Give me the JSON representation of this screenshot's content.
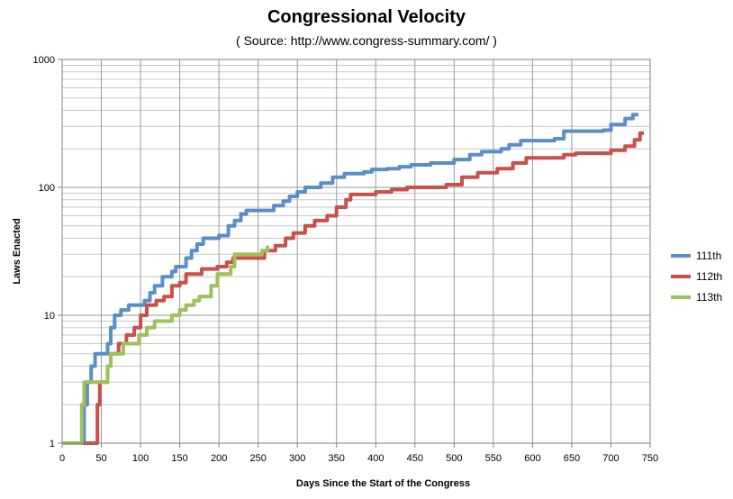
{
  "chart_data": {
    "type": "line",
    "title": "Congressional Velocity",
    "subtitle": "( Source: http://www.congress-summary.com/ )",
    "xlabel": "Days Since the Start of the Congress",
    "ylabel": "Laws Enacted",
    "xlim": [
      0,
      750
    ],
    "ylim": [
      1,
      1000
    ],
    "yscale": "log",
    "xticks": [
      0,
      50,
      100,
      150,
      200,
      250,
      300,
      350,
      400,
      450,
      500,
      550,
      600,
      650,
      700,
      750
    ],
    "yticks": [
      1,
      10,
      100,
      1000
    ],
    "grid": true,
    "legend_position": "right",
    "series": [
      {
        "name": "111th",
        "color": "#5b8ec7",
        "points": [
          [
            0,
            1
          ],
          [
            28,
            1
          ],
          [
            28,
            2
          ],
          [
            32,
            2
          ],
          [
            32,
            3
          ],
          [
            37,
            3
          ],
          [
            37,
            4
          ],
          [
            42,
            4
          ],
          [
            42,
            5
          ],
          [
            58,
            5
          ],
          [
            58,
            6
          ],
          [
            62,
            6
          ],
          [
            62,
            8
          ],
          [
            67,
            8
          ],
          [
            67,
            10
          ],
          [
            75,
            10
          ],
          [
            75,
            11
          ],
          [
            85,
            11
          ],
          [
            85,
            12
          ],
          [
            105,
            12
          ],
          [
            105,
            13
          ],
          [
            112,
            13
          ],
          [
            112,
            15
          ],
          [
            118,
            15
          ],
          [
            118,
            17
          ],
          [
            128,
            17
          ],
          [
            128,
            20
          ],
          [
            140,
            20
          ],
          [
            140,
            22
          ],
          [
            145,
            22
          ],
          [
            145,
            24
          ],
          [
            158,
            24
          ],
          [
            158,
            28
          ],
          [
            165,
            28
          ],
          [
            165,
            32
          ],
          [
            172,
            32
          ],
          [
            172,
            36
          ],
          [
            180,
            36
          ],
          [
            180,
            40
          ],
          [
            200,
            40
          ],
          [
            200,
            42
          ],
          [
            212,
            42
          ],
          [
            212,
            50
          ],
          [
            220,
            50
          ],
          [
            220,
            55
          ],
          [
            228,
            55
          ],
          [
            228,
            62
          ],
          [
            235,
            62
          ],
          [
            235,
            66
          ],
          [
            270,
            66
          ],
          [
            270,
            72
          ],
          [
            282,
            72
          ],
          [
            282,
            78
          ],
          [
            290,
            78
          ],
          [
            290,
            85
          ],
          [
            300,
            85
          ],
          [
            300,
            92
          ],
          [
            310,
            92
          ],
          [
            310,
            100
          ],
          [
            330,
            100
          ],
          [
            330,
            108
          ],
          [
            345,
            108
          ],
          [
            345,
            120
          ],
          [
            360,
            120
          ],
          [
            360,
            128
          ],
          [
            385,
            128
          ],
          [
            385,
            132
          ],
          [
            395,
            132
          ],
          [
            395,
            138
          ],
          [
            415,
            138
          ],
          [
            415,
            140
          ],
          [
            430,
            140
          ],
          [
            430,
            145
          ],
          [
            445,
            145
          ],
          [
            445,
            150
          ],
          [
            470,
            150
          ],
          [
            470,
            155
          ],
          [
            500,
            155
          ],
          [
            500,
            165
          ],
          [
            520,
            165
          ],
          [
            520,
            180
          ],
          [
            535,
            180
          ],
          [
            535,
            190
          ],
          [
            560,
            190
          ],
          [
            560,
            200
          ],
          [
            570,
            200
          ],
          [
            570,
            215
          ],
          [
            585,
            215
          ],
          [
            585,
            232
          ],
          [
            628,
            232
          ],
          [
            628,
            240
          ],
          [
            640,
            240
          ],
          [
            640,
            275
          ],
          [
            690,
            275
          ],
          [
            690,
            280
          ],
          [
            700,
            280
          ],
          [
            700,
            310
          ],
          [
            718,
            310
          ],
          [
            718,
            345
          ],
          [
            728,
            345
          ],
          [
            728,
            370
          ],
          [
            735,
            370
          ]
        ]
      },
      {
        "name": "112th",
        "color": "#c9504b",
        "points": [
          [
            0,
            1
          ],
          [
            45,
            1
          ],
          [
            45,
            2
          ],
          [
            48,
            2
          ],
          [
            48,
            3
          ],
          [
            58,
            3
          ],
          [
            58,
            4
          ],
          [
            62,
            4
          ],
          [
            62,
            5
          ],
          [
            72,
            5
          ],
          [
            72,
            6
          ],
          [
            82,
            6
          ],
          [
            82,
            7
          ],
          [
            92,
            7
          ],
          [
            92,
            8
          ],
          [
            100,
            8
          ],
          [
            100,
            10
          ],
          [
            108,
            10
          ],
          [
            108,
            12
          ],
          [
            120,
            12
          ],
          [
            120,
            13
          ],
          [
            130,
            13
          ],
          [
            130,
            14
          ],
          [
            140,
            14
          ],
          [
            140,
            17
          ],
          [
            150,
            17
          ],
          [
            150,
            18
          ],
          [
            158,
            18
          ],
          [
            158,
            21
          ],
          [
            178,
            21
          ],
          [
            178,
            23
          ],
          [
            198,
            23
          ],
          [
            198,
            24
          ],
          [
            210,
            24
          ],
          [
            210,
            26
          ],
          [
            218,
            26
          ],
          [
            218,
            28
          ],
          [
            258,
            28
          ],
          [
            258,
            32
          ],
          [
            272,
            32
          ],
          [
            272,
            35
          ],
          [
            285,
            35
          ],
          [
            285,
            40
          ],
          [
            295,
            40
          ],
          [
            295,
            44
          ],
          [
            310,
            44
          ],
          [
            310,
            50
          ],
          [
            322,
            50
          ],
          [
            322,
            55
          ],
          [
            338,
            55
          ],
          [
            338,
            60
          ],
          [
            350,
            60
          ],
          [
            350,
            70
          ],
          [
            362,
            70
          ],
          [
            362,
            80
          ],
          [
            368,
            80
          ],
          [
            368,
            88
          ],
          [
            400,
            88
          ],
          [
            400,
            92
          ],
          [
            420,
            92
          ],
          [
            420,
            96
          ],
          [
            440,
            96
          ],
          [
            440,
            100
          ],
          [
            490,
            100
          ],
          [
            490,
            105
          ],
          [
            510,
            105
          ],
          [
            510,
            120
          ],
          [
            530,
            120
          ],
          [
            530,
            130
          ],
          [
            555,
            130
          ],
          [
            555,
            140
          ],
          [
            575,
            140
          ],
          [
            575,
            155
          ],
          [
            592,
            155
          ],
          [
            592,
            170
          ],
          [
            640,
            170
          ],
          [
            640,
            180
          ],
          [
            655,
            180
          ],
          [
            655,
            185
          ],
          [
            700,
            185
          ],
          [
            700,
            195
          ],
          [
            718,
            195
          ],
          [
            718,
            210
          ],
          [
            730,
            210
          ],
          [
            730,
            235
          ],
          [
            737,
            235
          ],
          [
            737,
            265
          ],
          [
            742,
            265
          ]
        ]
      },
      {
        "name": "113th",
        "color": "#9ec15a",
        "points": [
          [
            0,
            1
          ],
          [
            25,
            1
          ],
          [
            25,
            2
          ],
          [
            28,
            2
          ],
          [
            28,
            3
          ],
          [
            58,
            3
          ],
          [
            58,
            4
          ],
          [
            62,
            4
          ],
          [
            62,
            5
          ],
          [
            78,
            5
          ],
          [
            78,
            6
          ],
          [
            98,
            6
          ],
          [
            98,
            7
          ],
          [
            108,
            7
          ],
          [
            108,
            8
          ],
          [
            118,
            8
          ],
          [
            118,
            9
          ],
          [
            140,
            9
          ],
          [
            140,
            10
          ],
          [
            150,
            10
          ],
          [
            150,
            11
          ],
          [
            158,
            11
          ],
          [
            158,
            12
          ],
          [
            168,
            12
          ],
          [
            168,
            13
          ],
          [
            175,
            13
          ],
          [
            175,
            14
          ],
          [
            190,
            14
          ],
          [
            190,
            17
          ],
          [
            198,
            17
          ],
          [
            198,
            21
          ],
          [
            215,
            21
          ],
          [
            215,
            24
          ],
          [
            220,
            24
          ],
          [
            220,
            30
          ],
          [
            255,
            30
          ],
          [
            255,
            32
          ],
          [
            262,
            32
          ],
          [
            262,
            35
          ]
        ]
      }
    ]
  }
}
